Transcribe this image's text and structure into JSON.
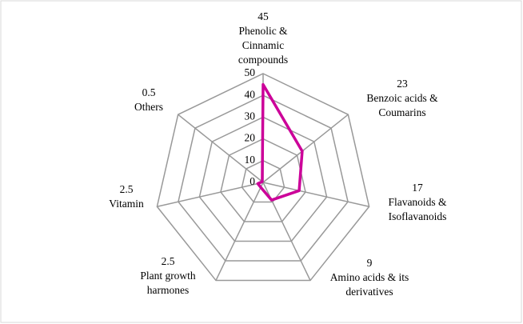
{
  "chart_data": {
    "type": "radar",
    "categories": [
      [
        "Phenolic &",
        "Cinnamic",
        "compounds"
      ],
      [
        "Benzoic acids &",
        "Coumarins"
      ],
      [
        "Flavanoids &",
        "Isoflavanoids"
      ],
      [
        "Amino acids & its",
        "derivatives"
      ],
      [
        "Plant growth",
        "harmones"
      ],
      [
        "Vitamin"
      ],
      [
        "Others"
      ]
    ],
    "values": [
      45,
      23,
      17,
      9,
      2.5,
      2.5,
      0.5
    ],
    "color": "#cc0099",
    "ylim": [
      0,
      50
    ],
    "yticks": [
      0,
      10,
      20,
      30,
      40,
      50
    ],
    "grid": true
  }
}
